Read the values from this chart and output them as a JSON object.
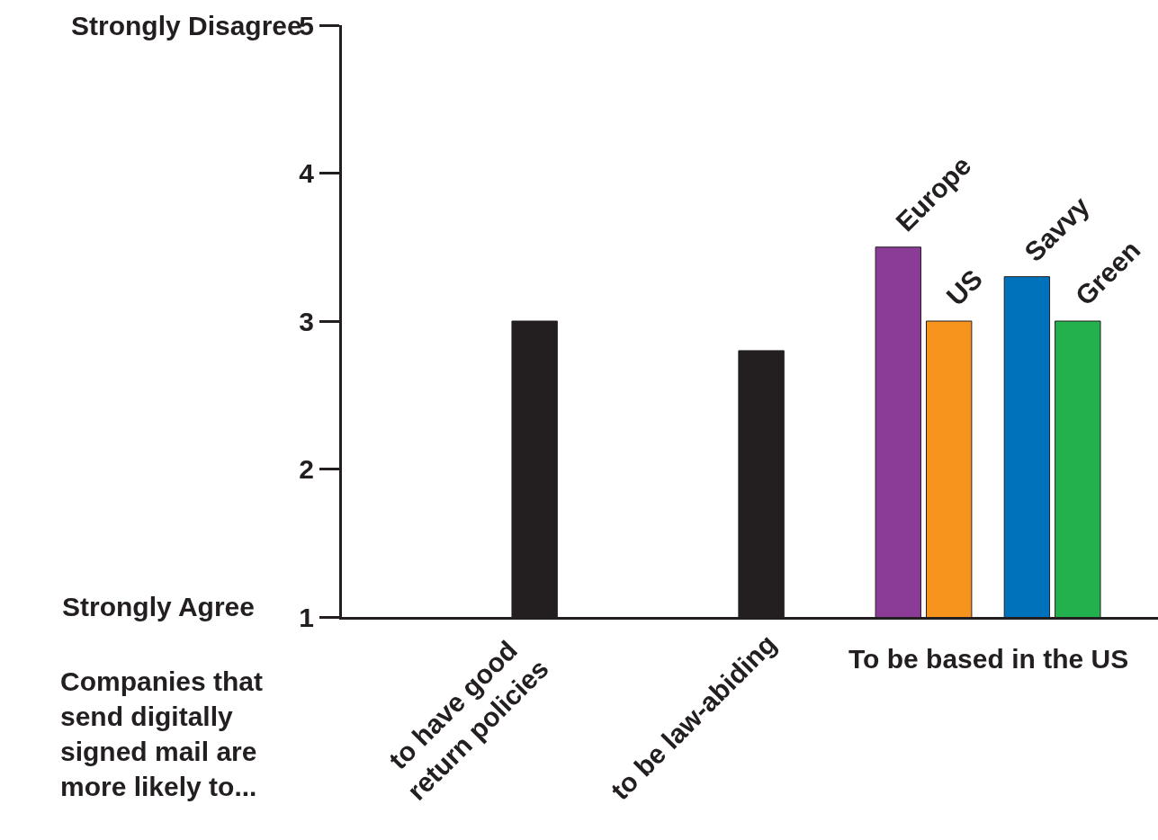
{
  "chart_data": {
    "type": "bar",
    "categories": [
      "to have good\nreturn policies",
      "to be law-abiding",
      "To be based in the US"
    ],
    "series": [
      {
        "color": "#231f20",
        "values": [
          3.0,
          2.8,
          null
        ]
      },
      {
        "name": "Europe",
        "color": "#8b3c96",
        "values": [
          null,
          null,
          3.5
        ]
      },
      {
        "name": "US",
        "color": "#f7941d",
        "values": [
          null,
          null,
          3.0
        ]
      },
      {
        "name": "Savvy",
        "color": "#0072bc",
        "values": [
          null,
          null,
          3.3
        ]
      },
      {
        "name": "Green",
        "color": "#22b14c",
        "values": [
          null,
          null,
          3.0
        ]
      }
    ],
    "ylim": [
      1,
      5
    ],
    "yticks": [
      1,
      2,
      3,
      4,
      5
    ],
    "annotations": [
      "Strongly Disagree",
      "Strongly Agree",
      "Companies that\nsend digitally\nsigned mail are\nmore likely to..."
    ]
  }
}
